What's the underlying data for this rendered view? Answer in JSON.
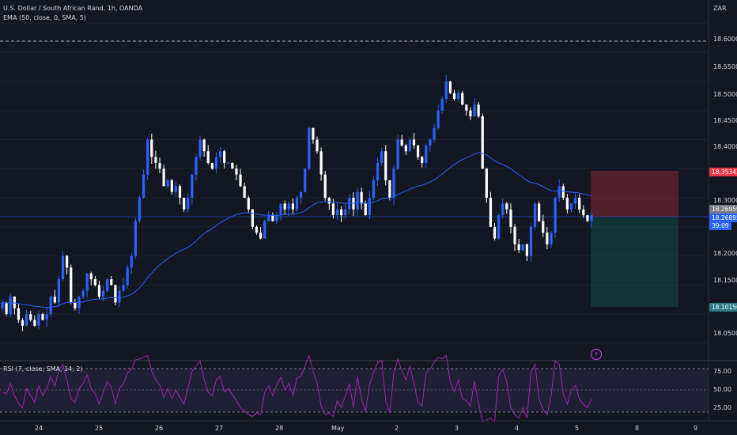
{
  "header": {
    "symbol_line": "U.S. Dollar / South African Rand, 1h, OANDA",
    "indicator_line": "EMA (50, close, 0, SMA, 5)"
  },
  "currency": "ZAR",
  "rsi_header": "RSI (7, close, SMA, 14, 2)",
  "price_axis": [
    "18.60000",
    "18.55000",
    "18.50000",
    "18.45000",
    "18.40000",
    "18.30000",
    "18.20000",
    "18.15000",
    "18.10000",
    "18.05000"
  ],
  "rsi_axis": [
    "75.00",
    "50.00",
    "25.00"
  ],
  "time_axis": [
    "24",
    "25",
    "26",
    "27",
    "28",
    "May",
    "2",
    "3",
    "4",
    "5",
    "8",
    "9"
  ],
  "tags": {
    "stop": "18.35343",
    "bid": "18.26959",
    "last": "18.26895",
    "countdown": "39:09",
    "target": "18.10150"
  },
  "colors": {
    "background": "#131722",
    "up": "#2962ff",
    "down": "#ffffff",
    "ema": "#2962ff",
    "rsi": "#7e57c2",
    "stop_zone": "#f23645",
    "target_zone": "#089981"
  },
  "chart_data": {
    "type": "candlestick",
    "ema": "EMA (50, close, 0, SMA, 5)",
    "price_range": [
      18.02,
      18.64
    ],
    "last_price": 18.26895,
    "position": {
      "stop": 18.35343,
      "entry": 18.26959,
      "target": 18.1015
    },
    "rsi_levels": [
      75,
      50,
      25
    ],
    "closes": [
      18.12,
      18.1,
      18.13,
      18.11,
      18.09,
      18.08,
      18.1,
      18.09,
      18.08,
      18.1,
      18.09,
      18.1,
      18.13,
      18.12,
      18.16,
      18.2,
      18.18,
      18.12,
      18.11,
      18.13,
      18.14,
      18.17,
      18.16,
      18.15,
      18.13,
      18.14,
      18.16,
      18.15,
      18.12,
      18.14,
      18.15,
      18.18,
      18.2,
      18.26,
      18.3,
      18.34,
      18.4,
      18.37,
      18.36,
      18.35,
      18.32,
      18.33,
      18.31,
      18.32,
      18.3,
      18.28,
      18.3,
      18.34,
      18.37,
      18.4,
      18.38,
      18.36,
      18.35,
      18.37,
      18.38,
      18.36,
      18.36,
      18.35,
      18.34,
      18.32,
      18.3,
      18.28,
      18.25,
      18.24,
      18.23,
      18.26,
      18.27,
      18.26,
      18.27,
      18.29,
      18.28,
      18.29,
      18.28,
      18.3,
      18.31,
      18.35,
      18.42,
      18.4,
      18.38,
      18.34,
      18.3,
      18.29,
      18.27,
      18.28,
      18.27,
      18.28,
      18.3,
      18.28,
      18.31,
      18.29,
      18.27,
      18.3,
      18.33,
      18.36,
      18.38,
      18.33,
      18.3,
      18.35,
      18.4,
      18.39,
      18.38,
      18.4,
      18.39,
      18.37,
      18.36,
      18.39,
      18.4,
      18.42,
      18.45,
      18.47,
      18.5,
      18.48,
      18.47,
      18.48,
      18.46,
      18.45,
      18.44,
      18.46,
      18.44,
      18.35,
      18.3,
      18.25,
      18.23,
      18.27,
      18.29,
      18.28,
      18.25,
      18.22,
      18.21,
      18.22,
      18.2,
      18.25,
      18.29,
      18.26,
      18.24,
      18.22,
      18.24,
      18.3,
      18.32,
      18.3,
      18.28,
      18.29,
      18.3,
      18.28,
      18.27,
      18.26,
      18.27
    ],
    "rsi": [
      48,
      46,
      58,
      44,
      35,
      30,
      52,
      44,
      36,
      55,
      44,
      52,
      66,
      55,
      73,
      80,
      62,
      40,
      36,
      52,
      58,
      68,
      52,
      46,
      34,
      48,
      60,
      54,
      34,
      52,
      58,
      70,
      74,
      85,
      86,
      88,
      90,
      72,
      62,
      56,
      42,
      52,
      40,
      50,
      42,
      34,
      52,
      72,
      78,
      84,
      62,
      48,
      44,
      62,
      66,
      48,
      52,
      45,
      38,
      30,
      26,
      22,
      20,
      24,
      22,
      48,
      55,
      44,
      56,
      65,
      50,
      58,
      44,
      64,
      66,
      78,
      90,
      72,
      58,
      32,
      22,
      24,
      20,
      38,
      30,
      44,
      58,
      30,
      66,
      40,
      26,
      56,
      70,
      82,
      84,
      38,
      24,
      70,
      86,
      72,
      62,
      78,
      58,
      36,
      32,
      70,
      74,
      82,
      88,
      86,
      90,
      60,
      48,
      62,
      40,
      38,
      32,
      60,
      36,
      14,
      16,
      18,
      14,
      66,
      74,
      60,
      30,
      22,
      18,
      30,
      18,
      70,
      80,
      40,
      28,
      22,
      44,
      84,
      80,
      46,
      34,
      50,
      56,
      40,
      34,
      30,
      40
    ]
  }
}
